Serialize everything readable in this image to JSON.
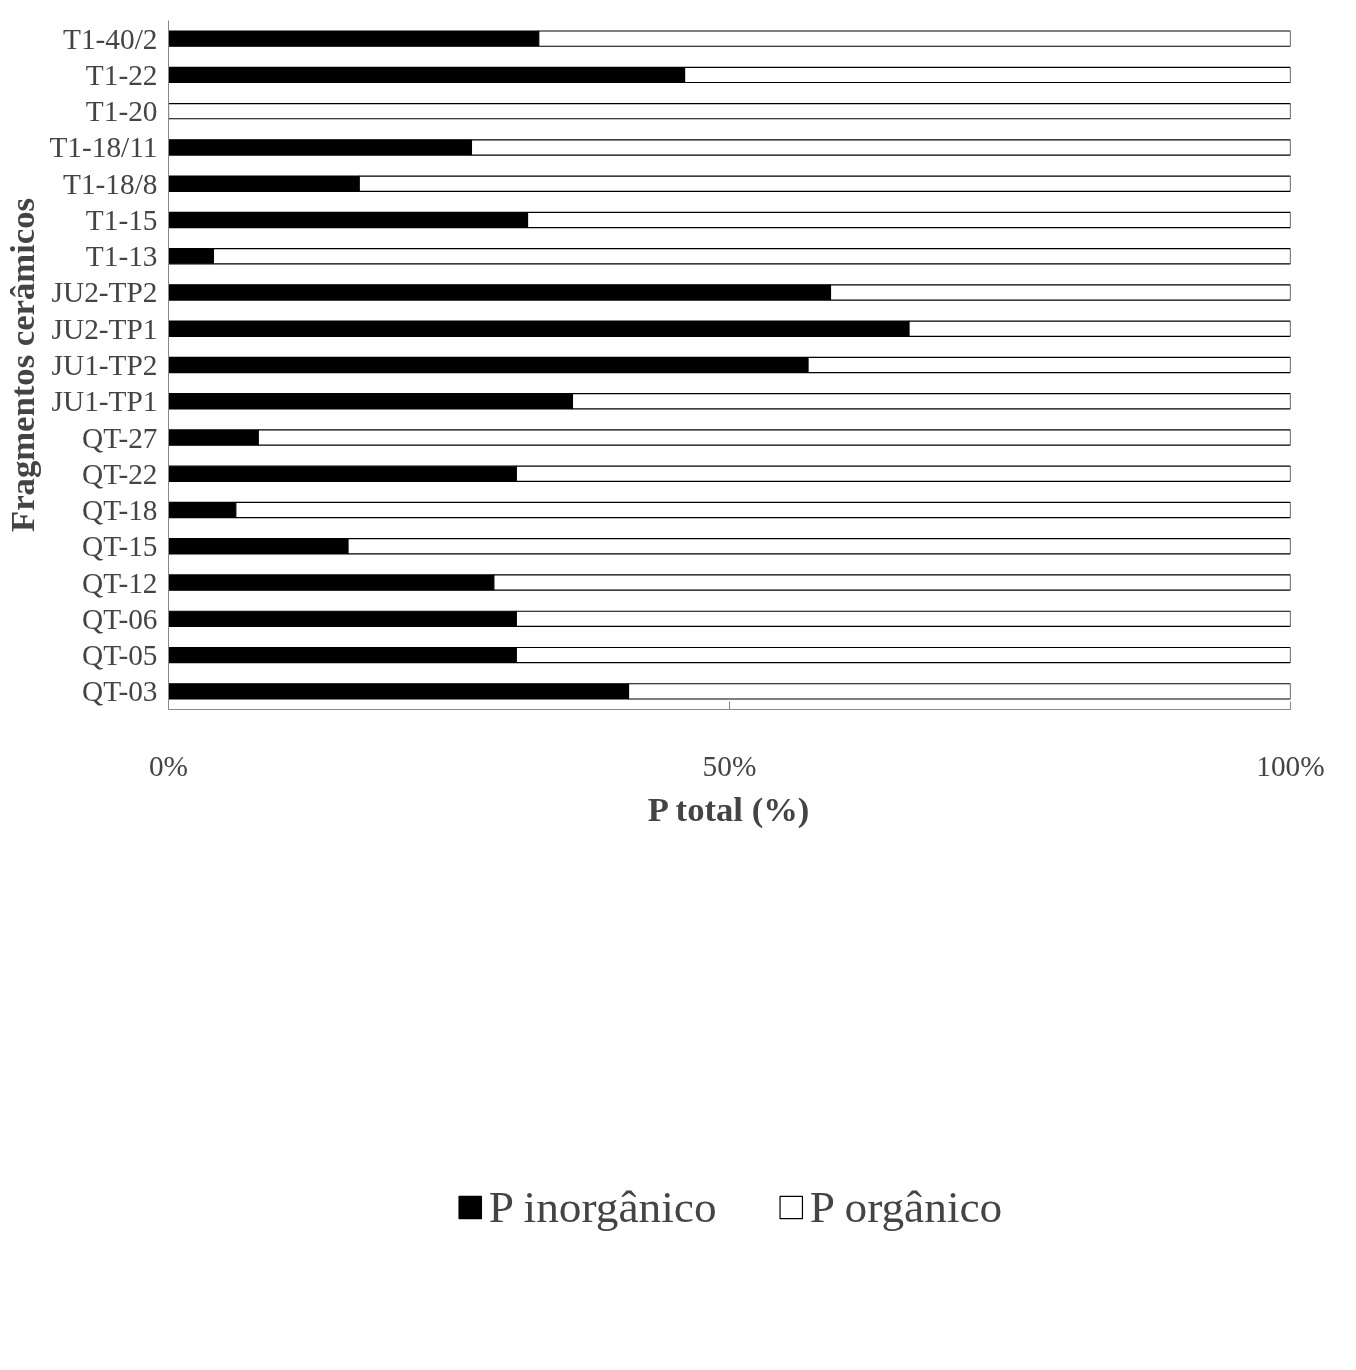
{
  "chart_data": {
    "type": "bar",
    "orientation": "horizontal",
    "stacked": true,
    "xlabel": "P total (%)",
    "ylabel": "Fragmentos cerâmicos",
    "categories": [
      "T1-40/2",
      "T1-22",
      "T1-20",
      "T1-18/11",
      "T1-18/8",
      "T1-15",
      "T1-13",
      "JU2-TP2",
      "JU2-TP1",
      "JU1-TP2",
      "JU1-TP1",
      "QT-27",
      "QT-22",
      "QT-18",
      "QT-15",
      "QT-12",
      "QT-06",
      "QT-05",
      "QT-03"
    ],
    "series": [
      {
        "name": "P inorgânico",
        "color": "#000000",
        "values": [
          33,
          46,
          0,
          27,
          17,
          32,
          4,
          59,
          66,
          57,
          36,
          8,
          31,
          6,
          16,
          29,
          31,
          31,
          41
        ]
      },
      {
        "name": "P orgânico",
        "color": "#ffffff",
        "values": [
          67,
          54,
          100,
          73,
          83,
          68,
          96,
          41,
          34,
          43,
          64,
          92,
          69,
          94,
          84,
          71,
          69,
          69,
          59
        ]
      }
    ],
    "xlim": [
      0,
      100
    ],
    "xticks": [
      {
        "value": 0,
        "label": "0%"
      },
      {
        "value": 50,
        "label": "50%"
      },
      {
        "value": 100,
        "label": "100%"
      }
    ],
    "legend": "bottom"
  }
}
